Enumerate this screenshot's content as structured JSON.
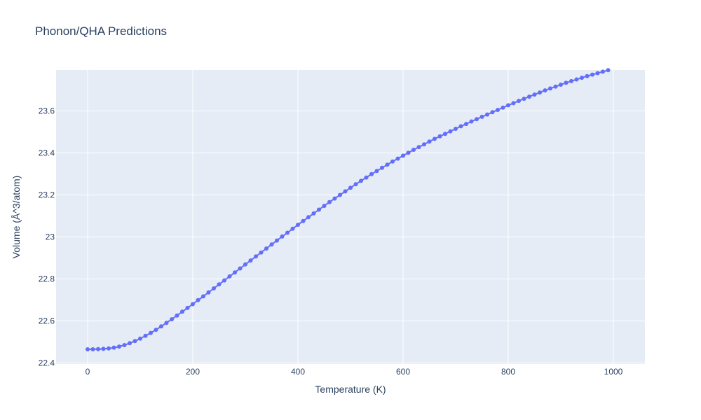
{
  "chart_data": {
    "type": "line",
    "title": "Phonon/QHA Predictions",
    "xlabel": "Temperature (K)",
    "ylabel": "Volume (Å^3/atom)",
    "xlim": [
      -60,
      1060
    ],
    "ylim": [
      22.395,
      23.795
    ],
    "x_ticks": [
      0,
      200,
      400,
      600,
      800,
      1000
    ],
    "x_tick_labels": [
      "0",
      "200",
      "400",
      "600",
      "800",
      "1000"
    ],
    "y_ticks": [
      22.4,
      22.6,
      22.8,
      23.0,
      23.2,
      23.4,
      23.6
    ],
    "y_tick_labels": [
      "22.4",
      "22.6",
      "22.8",
      "23",
      "23.2",
      "23.4",
      "23.6"
    ],
    "grid": true,
    "markers": true,
    "series": [
      {
        "color": "#636efa",
        "x": [
          0,
          10,
          20,
          30,
          40,
          50,
          60,
          70,
          80,
          90,
          100,
          110,
          120,
          130,
          140,
          150,
          160,
          170,
          180,
          190,
          200,
          210,
          220,
          230,
          240,
          250,
          260,
          270,
          280,
          290,
          300,
          310,
          320,
          330,
          340,
          350,
          360,
          370,
          380,
          390,
          400,
          410,
          420,
          430,
          440,
          450,
          460,
          470,
          480,
          490,
          500,
          510,
          520,
          530,
          540,
          550,
          560,
          570,
          580,
          590,
          600,
          610,
          620,
          630,
          640,
          650,
          660,
          670,
          680,
          690,
          700,
          710,
          720,
          730,
          740,
          750,
          760,
          770,
          780,
          790,
          800,
          810,
          820,
          830,
          840,
          850,
          860,
          870,
          880,
          890,
          900,
          910,
          920,
          930,
          940,
          950,
          960,
          970,
          980,
          990
        ],
        "y": [
          22.465,
          22.465,
          22.466,
          22.467,
          22.469,
          22.473,
          22.478,
          22.485,
          22.494,
          22.504,
          22.516,
          22.529,
          22.543,
          22.558,
          22.574,
          22.591,
          22.608,
          22.626,
          22.644,
          22.662,
          22.68,
          22.699,
          22.717,
          22.736,
          22.755,
          22.774,
          22.793,
          22.812,
          22.831,
          22.85,
          22.869,
          22.888,
          22.907,
          22.926,
          22.945,
          22.964,
          22.983,
          23.002,
          23.02,
          23.039,
          23.058,
          23.076,
          23.094,
          23.112,
          23.13,
          23.148,
          23.166,
          23.183,
          23.2,
          23.217,
          23.234,
          23.251,
          23.267,
          23.283,
          23.299,
          23.314,
          23.329,
          23.344,
          23.359,
          23.373,
          23.387,
          23.401,
          23.415,
          23.428,
          23.441,
          23.454,
          23.467,
          23.479,
          23.491,
          23.503,
          23.515,
          23.527,
          23.538,
          23.55,
          23.561,
          23.572,
          23.583,
          23.594,
          23.605,
          23.616,
          23.627,
          23.637,
          23.648,
          23.658,
          23.668,
          23.678,
          23.688,
          23.698,
          23.707,
          23.716,
          23.725,
          23.734,
          23.742,
          23.75,
          23.758,
          23.766,
          23.773,
          23.78,
          23.787,
          23.794
        ]
      }
    ]
  }
}
